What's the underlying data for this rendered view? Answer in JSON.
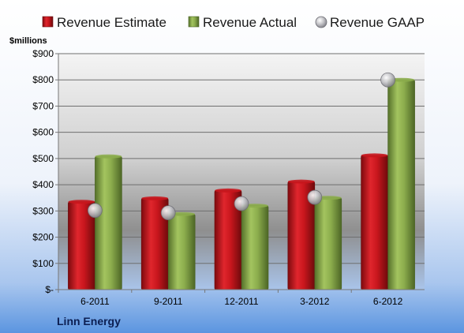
{
  "chart_data": {
    "type": "bar",
    "unit_label": "$millions",
    "company": "Linn Energy",
    "categories": [
      "6-2011",
      "9-2011",
      "12-2011",
      "3-2012",
      "6-2012"
    ],
    "series": [
      {
        "name": "Revenue Estimate",
        "kind": "bar",
        "color": "#c8161d",
        "values": [
          335,
          348,
          378,
          412,
          512
        ]
      },
      {
        "name": "Revenue Actual",
        "kind": "bar",
        "color": "#8cad4d",
        "values": [
          508,
          288,
          320,
          350,
          800
        ]
      },
      {
        "name": "Revenue GAAP",
        "kind": "marker",
        "color": "#a8a8ad",
        "values": [
          302,
          293,
          328,
          352,
          800
        ]
      }
    ],
    "yticks": [
      0,
      100,
      200,
      300,
      400,
      500,
      600,
      700,
      800,
      900
    ],
    "ytick_labels": [
      "$-",
      "$100",
      "$200",
      "$300",
      "$400",
      "$500",
      "$600",
      "$700",
      "$800",
      "$900"
    ],
    "ylim": [
      0,
      900
    ],
    "grid": true,
    "legend_position": "top"
  }
}
